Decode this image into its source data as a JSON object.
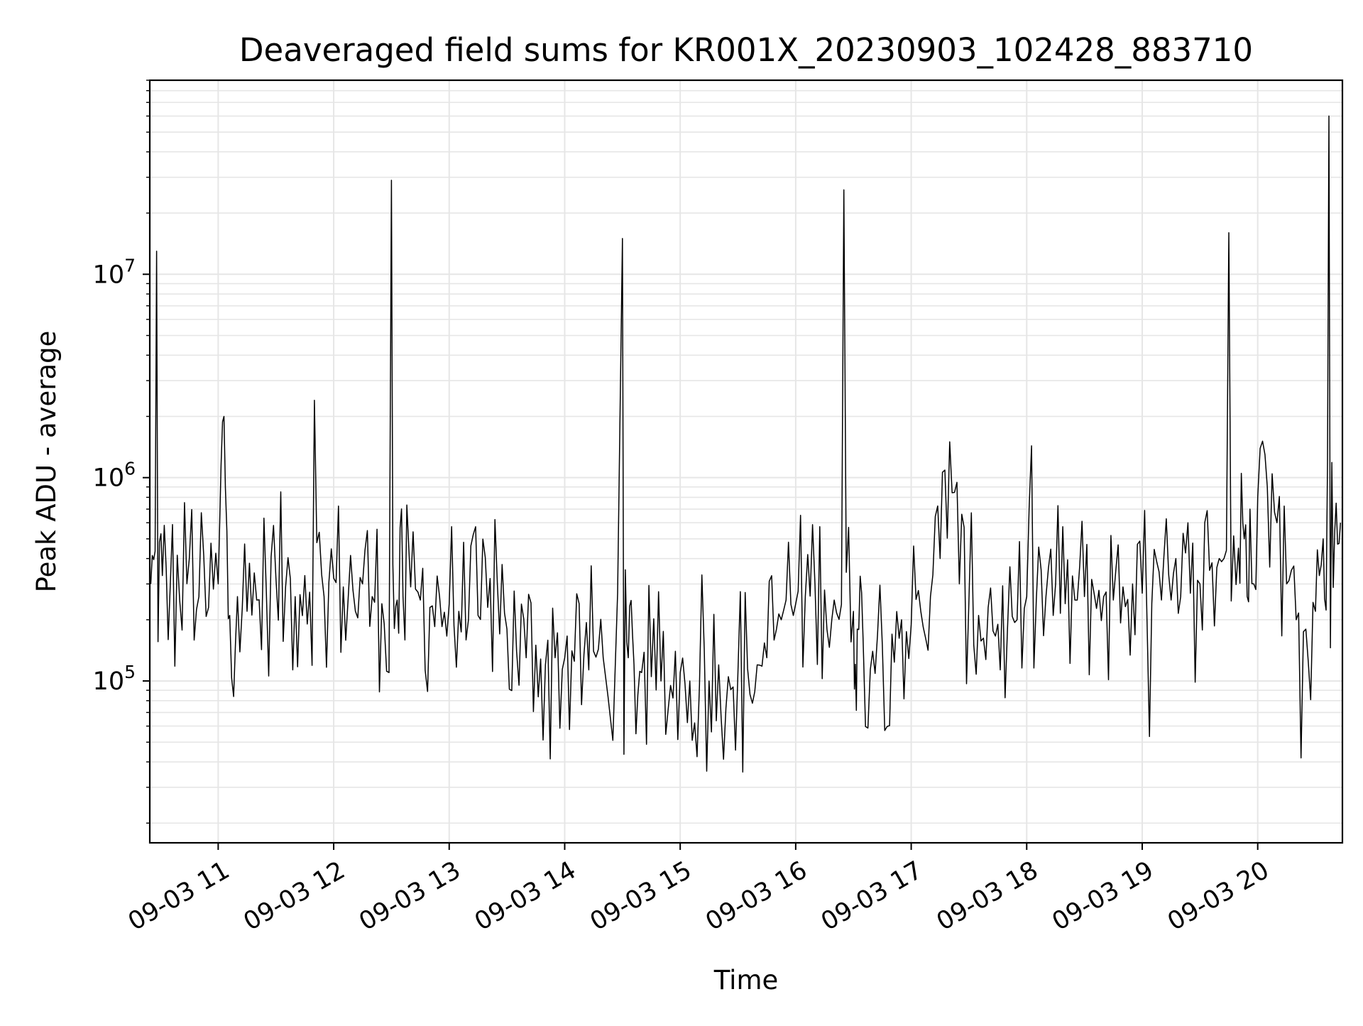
{
  "chart_data": {
    "type": "line",
    "title": "Deaveraged field sums for KR001X_20230903_102428_883710",
    "xlabel": "Time",
    "ylabel": "Peak ADU - average",
    "yscale": "log",
    "xlim": [
      "2023-09-03T10:24:28",
      "2023-09-03T20:44:00"
    ],
    "ylim": [
      16000,
      90000000
    ],
    "x_ticks": [
      {
        "value": "2023-09-03T11:00",
        "label": "09-03 11"
      },
      {
        "value": "2023-09-03T12:00",
        "label": "09-03 12"
      },
      {
        "value": "2023-09-03T13:00",
        "label": "09-03 13"
      },
      {
        "value": "2023-09-03T14:00",
        "label": "09-03 14"
      },
      {
        "value": "2023-09-03T15:00",
        "label": "09-03 15"
      },
      {
        "value": "2023-09-03T16:00",
        "label": "09-03 16"
      },
      {
        "value": "2023-09-03T17:00",
        "label": "09-03 17"
      },
      {
        "value": "2023-09-03T18:00",
        "label": "09-03 18"
      },
      {
        "value": "2023-09-03T19:00",
        "label": "09-03 19"
      },
      {
        "value": "2023-09-03T20:00",
        "label": "09-03 20"
      }
    ],
    "y_ticks": [
      {
        "value": 100000,
        "base": "10",
        "exp": "5"
      },
      {
        "value": 1000000,
        "base": "10",
        "exp": "6"
      },
      {
        "value": 10000000,
        "base": "10",
        "exp": "7"
      }
    ],
    "grid": true,
    "line_color": "#000000",
    "grid_color": "#e6e6e6",
    "series": [
      {
        "x": [
          "10:25",
          "10:28",
          "10:31",
          "10:35",
          "10:40",
          "10:45",
          "10:50",
          "10:55",
          "11:00",
          "11:03",
          "11:06",
          "11:10",
          "11:15",
          "11:20",
          "11:25",
          "11:30",
          "11:35",
          "11:40",
          "11:45",
          "11:50",
          "11:55",
          "12:00",
          "12:05",
          "12:10",
          "12:15",
          "12:20",
          "12:25",
          "12:30",
          "12:33",
          "12:36",
          "12:40",
          "12:45",
          "12:50",
          "12:55",
          "13:00",
          "13:05",
          "13:10",
          "13:15",
          "13:20",
          "13:25",
          "13:30",
          "13:35",
          "13:40",
          "13:45",
          "13:50",
          "13:55",
          "14:00",
          "14:05",
          "14:10",
          "14:15",
          "14:20",
          "14:30",
          "14:33",
          "14:36",
          "14:40",
          "14:45",
          "14:50",
          "14:55",
          "15:00",
          "15:05",
          "15:10",
          "15:15",
          "15:20",
          "15:25",
          "15:30",
          "15:35",
          "15:40",
          "15:45",
          "15:50",
          "15:55",
          "16:00",
          "16:05",
          "16:10",
          "16:15",
          "16:20",
          "16:25",
          "16:30",
          "16:32",
          "16:35",
          "16:40",
          "16:45",
          "16:50",
          "16:55",
          "17:00",
          "17:05",
          "17:10",
          "17:15",
          "17:20",
          "17:25",
          "17:30",
          "17:35",
          "17:40",
          "17:45",
          "17:50",
          "17:55",
          "18:00",
          "18:05",
          "18:10",
          "18:15",
          "18:20",
          "18:25",
          "18:30",
          "18:35",
          "18:40",
          "18:45",
          "18:50",
          "18:55",
          "19:00",
          "19:05",
          "19:10",
          "19:15",
          "19:20",
          "19:25",
          "19:30",
          "19:35",
          "19:40",
          "19:45",
          "19:50",
          "19:53",
          "19:56",
          "20:00",
          "20:05",
          "20:10",
          "20:15",
          "20:20",
          "20:25",
          "20:30",
          "20:34",
          "20:37",
          "20:40",
          "20:43"
        ],
        "y": [
          300000,
          13000000,
          330000,
          280000,
          250000,
          400000,
          260000,
          230000,
          300000,
          2000000,
          210000,
          260000,
          220000,
          250000,
          280000,
          320000,
          290000,
          260000,
          330000,
          2400000,
          260000,
          320000,
          290000,
          280000,
          300000,
          260000,
          240000,
          29000000,
          250000,
          260000,
          290000,
          250000,
          230000,
          260000,
          240000,
          220000,
          200000,
          210000,
          230000,
          300000,
          180000,
          140000,
          130000,
          150000,
          120000,
          130000,
          130000,
          125000,
          135000,
          140000,
          130000,
          15000000,
          130000,
          120000,
          110000,
          105000,
          100000,
          95000,
          110000,
          100000,
          95000,
          100000,
          120000,
          105000,
          110000,
          115000,
          120000,
          130000,
          180000,
          250000,
          240000,
          260000,
          300000,
          280000,
          250000,
          26000000,
          220000,
          180000,
          160000,
          140000,
          150000,
          170000,
          200000,
          190000,
          220000,
          260000,
          400000,
          1500000,
          300000,
          250000,
          210000,
          230000,
          190000,
          180000,
          200000,
          260000,
          250000,
          260000,
          300000,
          240000,
          250000,
          260000,
          270000,
          260000,
          250000,
          290000,
          300000,
          270000,
          240000,
          250000,
          250000,
          260000,
          270000,
          300000,
          350000,
          400000,
          16000000,
          450000,
          500000,
          700000,
          800000,
          900000,
          600000,
          300000,
          200000,
          180000,
          220000,
          500000,
          60000000,
          550000,
          600000
        ]
      }
    ]
  }
}
